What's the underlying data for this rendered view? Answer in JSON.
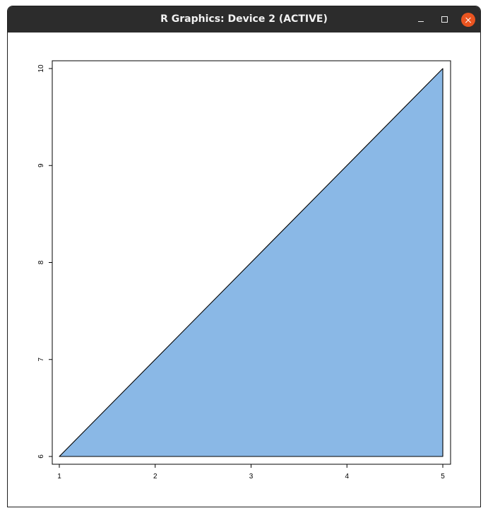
{
  "window": {
    "title": "R Graphics: Device 2 (ACTIVE)",
    "buttons": {
      "minimize_icon": "minimize-icon",
      "maximize_icon": "maximize-icon",
      "close_icon": "close-icon",
      "close_color": "#e95420"
    }
  },
  "chart_data": {
    "type": "area",
    "title": "",
    "xlabel": "",
    "ylabel": "",
    "xlim": [
      1,
      5
    ],
    "ylim": [
      6,
      10
    ],
    "x_ticks": [
      "1",
      "2",
      "3",
      "4",
      "5"
    ],
    "y_ticks": [
      "6",
      "7",
      "8",
      "9",
      "10"
    ],
    "series": [
      {
        "polygon": [
          {
            "x": 1,
            "y": 6
          },
          {
            "x": 5,
            "y": 10
          },
          {
            "x": 5,
            "y": 6
          }
        ],
        "fill": "#8ab8e6",
        "stroke": "#000000"
      }
    ],
    "grid": false,
    "legend": "none"
  }
}
